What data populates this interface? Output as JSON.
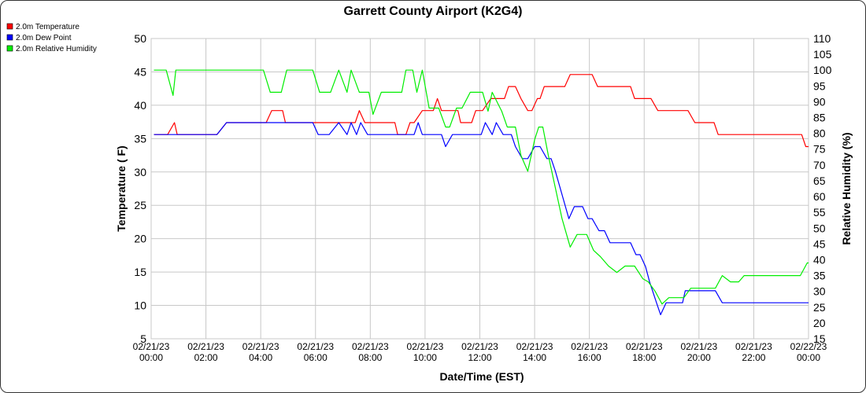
{
  "colors": {
    "temperature": "#ff0000",
    "dew_point": "#0000ff",
    "humidity": "#00ee00",
    "grid": "#c8c8c8"
  },
  "chart_data": {
    "type": "line",
    "title": "Garrett County Airport (K2G4)",
    "xlabel": "Date/Time (EST)",
    "ylabel_left": "Temperature ( F)",
    "ylabel_right": "Relative Humidity (%)",
    "ylim_left": [
      5,
      50
    ],
    "ylim_right": [
      15,
      110
    ],
    "xlim_hours": [
      0,
      24
    ],
    "grid": true,
    "legend_position": "top-left",
    "yticks_left": [
      "5",
      "10",
      "15",
      "20",
      "25",
      "30",
      "35",
      "40",
      "45",
      "50"
    ],
    "yticks_right": [
      "15",
      "20",
      "25",
      "30",
      "35",
      "40",
      "45",
      "50",
      "55",
      "60",
      "65",
      "70",
      "75",
      "80",
      "85",
      "90",
      "95",
      "100",
      "105",
      "110"
    ],
    "xticks": [
      {
        "date": "02/21/23",
        "time": "00:00"
      },
      {
        "date": "02/21/23",
        "time": "02:00"
      },
      {
        "date": "02/21/23",
        "time": "04:00"
      },
      {
        "date": "02/21/23",
        "time": "06:00"
      },
      {
        "date": "02/21/23",
        "time": "08:00"
      },
      {
        "date": "02/21/23",
        "time": "10:00"
      },
      {
        "date": "02/21/23",
        "time": "12:00"
      },
      {
        "date": "02/21/23",
        "time": "14:00"
      },
      {
        "date": "02/21/23",
        "time": "16:00"
      },
      {
        "date": "02/21/23",
        "time": "18:00"
      },
      {
        "date": "02/21/23",
        "time": "20:00"
      },
      {
        "date": "02/21/23",
        "time": "22:00"
      },
      {
        "date": "02/22/23",
        "time": "00:00"
      }
    ],
    "series": [
      {
        "name": "2.0m Temperature",
        "axis": "left",
        "points": [
          [
            0.1,
            35.6
          ],
          [
            0.6,
            35.6
          ],
          [
            0.85,
            37.4
          ],
          [
            0.95,
            35.6
          ],
          [
            2.4,
            35.6
          ],
          [
            2.75,
            37.4
          ],
          [
            4.2,
            37.4
          ],
          [
            4.4,
            39.2
          ],
          [
            4.8,
            39.2
          ],
          [
            4.9,
            37.4
          ],
          [
            7.45,
            37.4
          ],
          [
            7.6,
            39.2
          ],
          [
            7.8,
            37.4
          ],
          [
            7.95,
            37.4
          ],
          [
            8.9,
            37.4
          ],
          [
            9.0,
            35.6
          ],
          [
            9.3,
            35.6
          ],
          [
            9.45,
            37.4
          ],
          [
            9.6,
            37.4
          ],
          [
            9.9,
            39.2
          ],
          [
            10.3,
            39.2
          ],
          [
            10.45,
            41.0
          ],
          [
            10.6,
            39.2
          ],
          [
            11.2,
            39.2
          ],
          [
            11.3,
            37.4
          ],
          [
            11.7,
            37.4
          ],
          [
            11.85,
            39.2
          ],
          [
            12.1,
            39.2
          ],
          [
            12.4,
            41.0
          ],
          [
            12.9,
            41.0
          ],
          [
            13.05,
            42.8
          ],
          [
            13.3,
            42.8
          ],
          [
            13.5,
            41.0
          ],
          [
            13.75,
            39.2
          ],
          [
            13.9,
            39.2
          ],
          [
            14.1,
            41.0
          ],
          [
            14.2,
            41.0
          ],
          [
            14.35,
            42.8
          ],
          [
            15.1,
            42.8
          ],
          [
            15.3,
            44.6
          ],
          [
            16.1,
            44.6
          ],
          [
            16.3,
            42.8
          ],
          [
            17.5,
            42.8
          ],
          [
            17.65,
            41.0
          ],
          [
            18.25,
            41.0
          ],
          [
            18.5,
            39.2
          ],
          [
            19.6,
            39.2
          ],
          [
            19.85,
            37.4
          ],
          [
            20.55,
            37.4
          ],
          [
            20.7,
            35.6
          ],
          [
            23.75,
            35.6
          ],
          [
            23.9,
            33.8
          ],
          [
            24.0,
            33.8
          ]
        ]
      },
      {
        "name": "2.0m Dew Point",
        "axis": "left",
        "points": [
          [
            0.1,
            35.6
          ],
          [
            2.4,
            35.6
          ],
          [
            2.75,
            37.4
          ],
          [
            5.9,
            37.4
          ],
          [
            6.1,
            35.6
          ],
          [
            6.5,
            35.6
          ],
          [
            6.85,
            37.4
          ],
          [
            7.15,
            35.6
          ],
          [
            7.3,
            37.4
          ],
          [
            7.5,
            35.6
          ],
          [
            7.65,
            37.4
          ],
          [
            7.9,
            35.6
          ],
          [
            9.6,
            35.6
          ],
          [
            9.75,
            37.4
          ],
          [
            9.9,
            35.6
          ],
          [
            10.6,
            35.6
          ],
          [
            10.75,
            33.8
          ],
          [
            11.0,
            35.6
          ],
          [
            12.05,
            35.6
          ],
          [
            12.2,
            37.4
          ],
          [
            12.45,
            35.6
          ],
          [
            12.6,
            37.4
          ],
          [
            12.85,
            35.6
          ],
          [
            13.15,
            35.6
          ],
          [
            13.3,
            33.8
          ],
          [
            13.55,
            32.0
          ],
          [
            13.75,
            32.0
          ],
          [
            14.0,
            33.8
          ],
          [
            14.2,
            33.8
          ],
          [
            14.45,
            32.0
          ],
          [
            14.6,
            32.0
          ],
          [
            14.75,
            30.2
          ],
          [
            15.0,
            26.6
          ],
          [
            15.25,
            23.0
          ],
          [
            15.45,
            24.8
          ],
          [
            15.75,
            24.8
          ],
          [
            15.95,
            23.0
          ],
          [
            16.1,
            23.0
          ],
          [
            16.35,
            21.2
          ],
          [
            16.55,
            21.2
          ],
          [
            16.75,
            19.4
          ],
          [
            17.5,
            19.4
          ],
          [
            17.7,
            17.6
          ],
          [
            17.85,
            17.6
          ],
          [
            18.05,
            15.8
          ],
          [
            18.2,
            13.5
          ],
          [
            18.45,
            10.4
          ],
          [
            18.6,
            8.6
          ],
          [
            18.8,
            10.4
          ],
          [
            19.4,
            10.4
          ],
          [
            19.5,
            12.2
          ],
          [
            20.6,
            12.2
          ],
          [
            20.85,
            10.4
          ],
          [
            24.0,
            10.4
          ]
        ]
      },
      {
        "name": "2.0m Relative Humidity",
        "axis": "right",
        "points": [
          [
            0.1,
            100
          ],
          [
            0.55,
            100
          ],
          [
            0.8,
            92
          ],
          [
            0.9,
            100
          ],
          [
            4.1,
            100
          ],
          [
            4.35,
            93
          ],
          [
            4.75,
            93
          ],
          [
            4.95,
            100
          ],
          [
            5.9,
            100
          ],
          [
            6.15,
            93
          ],
          [
            6.55,
            93
          ],
          [
            6.85,
            100
          ],
          [
            7.15,
            93
          ],
          [
            7.3,
            100
          ],
          [
            7.6,
            93
          ],
          [
            7.95,
            93
          ],
          [
            8.1,
            86
          ],
          [
            8.4,
            93
          ],
          [
            9.15,
            93
          ],
          [
            9.3,
            100
          ],
          [
            9.55,
            100
          ],
          [
            9.7,
            93
          ],
          [
            9.9,
            100
          ],
          [
            10.15,
            88
          ],
          [
            10.5,
            88
          ],
          [
            10.75,
            82
          ],
          [
            10.9,
            82
          ],
          [
            11.15,
            88
          ],
          [
            11.35,
            88
          ],
          [
            11.65,
            93
          ],
          [
            12.1,
            93
          ],
          [
            12.3,
            87
          ],
          [
            12.45,
            93
          ],
          [
            12.8,
            87
          ],
          [
            13.0,
            82
          ],
          [
            13.3,
            82
          ],
          [
            13.5,
            73
          ],
          [
            13.75,
            68
          ],
          [
            14.0,
            78
          ],
          [
            14.15,
            82
          ],
          [
            14.3,
            82
          ],
          [
            14.5,
            73
          ],
          [
            14.75,
            63
          ],
          [
            15.0,
            53
          ],
          [
            15.3,
            44
          ],
          [
            15.55,
            48
          ],
          [
            15.9,
            48
          ],
          [
            16.15,
            43
          ],
          [
            16.4,
            41
          ],
          [
            16.7,
            38
          ],
          [
            17.0,
            36
          ],
          [
            17.3,
            38
          ],
          [
            17.65,
            38
          ],
          [
            17.95,
            34
          ],
          [
            18.15,
            33
          ],
          [
            18.4,
            30
          ],
          [
            18.65,
            26
          ],
          [
            18.9,
            28
          ],
          [
            19.45,
            28
          ],
          [
            19.7,
            31
          ],
          [
            20.6,
            31
          ],
          [
            20.85,
            35
          ],
          [
            21.15,
            33
          ],
          [
            21.45,
            33
          ],
          [
            21.65,
            35
          ],
          [
            23.7,
            35
          ],
          [
            23.95,
            39
          ],
          [
            24.0,
            39
          ]
        ]
      }
    ]
  }
}
